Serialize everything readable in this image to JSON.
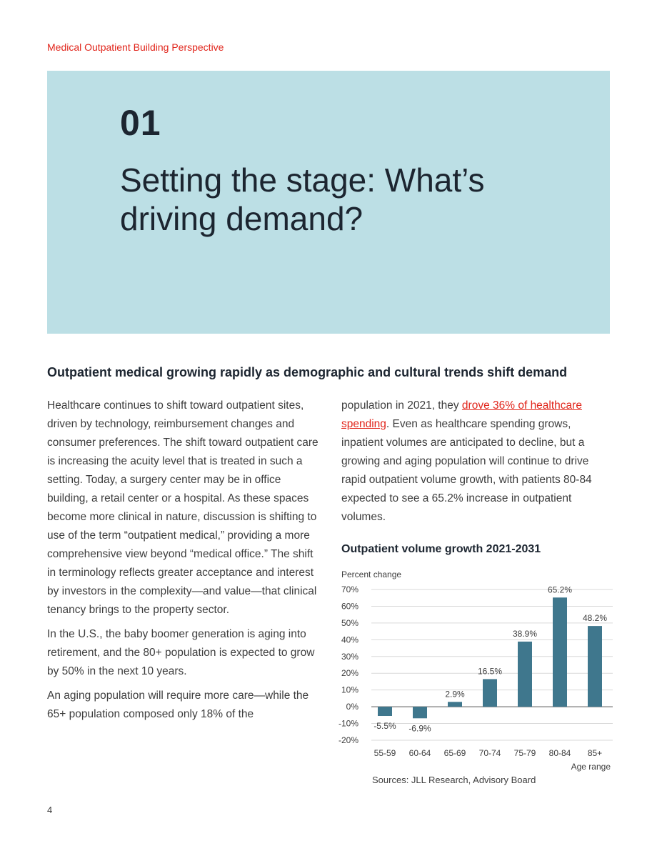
{
  "header": {
    "label": "Medical Outpatient Building Perspective"
  },
  "hero": {
    "number": "01",
    "title_line1": "Setting the stage: What’s",
    "title_line2": "driving demand?"
  },
  "section": {
    "heading": "Outpatient medical growing rapidly as demographic and cultural trends shift demand"
  },
  "body": {
    "left_p1": "Healthcare continues to shift toward outpatient sites, driven by technology, reimbursement changes and consumer preferences. The shift toward outpatient care is increasing the acuity level that is treated in such a setting. Today, a surgery center may be in office building, a retail center or a hospital. As these spaces become more clinical in nature, discussion is shifting to use of the term “outpatient medical,” providing a more comprehensive view beyond “medical office.” The shift in terminology reflects greater acceptance and interest by investors in the complexity—and value—that clinical tenancy brings to the property sector.",
    "left_p2": "In the U.S., the baby boomer generation is aging into retirement, and the 80+ population is expected to grow by 50% in the next 10 years.",
    "left_p3": "An aging population will require more care—while the 65+ population composed only 18% of the",
    "right_pre": "population in 2021, they ",
    "right_link": "drove 36% of healthcare spending",
    "right_post": ". Even as healthcare spending grows, inpatient volumes are anticipated to decline, but a growing and aging population will continue to drive rapid outpatient volume growth, with patients 80-84 expected to see a 65.2% increase in outpatient volumes."
  },
  "colors": {
    "accent": "#e1251b",
    "hero_bg": "#bcdfe5",
    "bar": "#3f778d"
  },
  "chart_data": {
    "type": "bar",
    "title": "Outpatient volume growth 2021-2031",
    "ylabel": "Percent change",
    "xlabel": "Age range",
    "categories": [
      "55-59",
      "60-64",
      "65-69",
      "70-74",
      "75-79",
      "80-84",
      "85+"
    ],
    "values": [
      -5.5,
      -6.9,
      2.9,
      16.5,
      38.9,
      65.2,
      48.2
    ],
    "value_labels": [
      "-5.5%",
      "-6.9%",
      "2.9%",
      "16.5%",
      "38.9%",
      "65.2%",
      "48.2%"
    ],
    "ylim": [
      -20,
      70
    ],
    "yticks": [
      70,
      60,
      50,
      40,
      30,
      20,
      10,
      0,
      -10,
      -20
    ],
    "ytick_labels": [
      "70%",
      "60%",
      "50%",
      "40%",
      "30%",
      "20%",
      "10%",
      "0%",
      "-10%",
      "-20%"
    ],
    "grid": true,
    "legend": "none"
  },
  "source": "Sources: JLL Research, Advisory Board",
  "page_number": "4"
}
